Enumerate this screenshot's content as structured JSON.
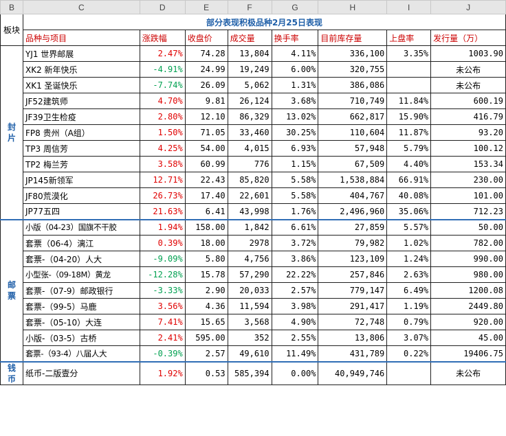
{
  "columns": [
    "B",
    "C",
    "D",
    "E",
    "F",
    "G",
    "H",
    "I",
    "J"
  ],
  "title": "部分表现积极品种2月25日表现",
  "block_label": "板块",
  "headers": [
    "品种与项目",
    "涨跌幅",
    "收盘价",
    "成交量",
    "换手率",
    "目前库存量",
    "上盘率",
    "发行量（万）"
  ],
  "groups": [
    {
      "label": "封片",
      "rows": [
        {
          "name": "YJ1 世界邮展",
          "change": "2.47%",
          "dir": "up",
          "close": "74.28",
          "volume": "13,804",
          "turnover": "4.11%",
          "stock": "336,100",
          "rate": "3.35%",
          "issue": "1003.90"
        },
        {
          "name": "XK2 新年快乐",
          "change": "-4.91%",
          "dir": "down",
          "close": "24.99",
          "volume": "19,249",
          "turnover": "6.00%",
          "stock": "320,755",
          "rate": "",
          "issue": "未公布"
        },
        {
          "name": "XK1 圣诞快乐",
          "change": "-7.74%",
          "dir": "down",
          "close": "26.09",
          "volume": "5,062",
          "turnover": "1.31%",
          "stock": "386,086",
          "rate": "",
          "issue": "未公布"
        },
        {
          "name": "JF52建筑师",
          "change": "4.70%",
          "dir": "up",
          "close": "9.81",
          "volume": "26,124",
          "turnover": "3.68%",
          "stock": "710,749",
          "rate": "11.84%",
          "issue": "600.19"
        },
        {
          "name": "JF39卫生检疫",
          "change": "2.80%",
          "dir": "up",
          "close": "12.10",
          "volume": "86,329",
          "turnover": "13.02%",
          "stock": "662,817",
          "rate": "15.90%",
          "issue": "416.79"
        },
        {
          "name": "FP8 贵州（A组）",
          "change": "1.50%",
          "dir": "up",
          "close": "71.05",
          "volume": "33,460",
          "turnover": "30.25%",
          "stock": "110,604",
          "rate": "11.87%",
          "issue": "93.20"
        },
        {
          "name": "TP3 周信芳",
          "change": "4.25%",
          "dir": "up",
          "close": "54.00",
          "volume": "4,015",
          "turnover": "6.93%",
          "stock": "57,948",
          "rate": "5.79%",
          "issue": "100.12"
        },
        {
          "name": "TP2 梅兰芳",
          "change": "3.58%",
          "dir": "up",
          "close": "60.99",
          "volume": "776",
          "turnover": "1.15%",
          "stock": "67,509",
          "rate": "4.40%",
          "issue": "153.34"
        },
        {
          "name": "JP145新领军",
          "change": "12.71%",
          "dir": "up",
          "close": "22.43",
          "volume": "85,820",
          "turnover": "5.58%",
          "stock": "1,538,884",
          "rate": "66.91%",
          "issue": "230.00"
        },
        {
          "name": "JF80荒漠化",
          "change": "26.73%",
          "dir": "up",
          "close": "17.40",
          "volume": "22,601",
          "turnover": "5.58%",
          "stock": "404,767",
          "rate": "40.08%",
          "issue": "101.00"
        },
        {
          "name": "JP77五四",
          "change": "21.63%",
          "dir": "up",
          "close": "6.41",
          "volume": "43,998",
          "turnover": "1.76%",
          "stock": "2,496,960",
          "rate": "35.06%",
          "issue": "712.23"
        }
      ]
    },
    {
      "label": "邮票",
      "rows": [
        {
          "name": "小版（04-23）国旗不干胶",
          "change": "1.94%",
          "dir": "up",
          "close": "158.00",
          "volume": "1,842",
          "turnover": "6.61%",
          "stock": "27,859",
          "rate": "5.57%",
          "issue": "50.00"
        },
        {
          "name": "套票（06-4）漓江",
          "change": "0.39%",
          "dir": "up",
          "close": "18.00",
          "volume": "2978",
          "turnover": "3.72%",
          "stock": "79,982",
          "rate": "1.02%",
          "issue": "782.00"
        },
        {
          "name": "套票-（04-20）人大",
          "change": "-9.09%",
          "dir": "down",
          "close": "5.80",
          "volume": "4,756",
          "turnover": "3.86%",
          "stock": "123,109",
          "rate": "1.24%",
          "issue": "990.00"
        },
        {
          "name": "小型张-（09-18M）黄龙",
          "change": "-12.28%",
          "dir": "down",
          "close": "15.78",
          "volume": "57,290",
          "turnover": "22.22%",
          "stock": "257,846",
          "rate": "2.63%",
          "issue": "980.00"
        },
        {
          "name": "套票-（07-9）邮政银行",
          "change": "-3.33%",
          "dir": "down",
          "close": "2.90",
          "volume": "20,033",
          "turnover": "2.57%",
          "stock": "779,147",
          "rate": "6.49%",
          "issue": "1200.08"
        },
        {
          "name": "套票-（99-5）马鹿",
          "change": "3.56%",
          "dir": "up",
          "close": "4.36",
          "volume": "11,594",
          "turnover": "3.98%",
          "stock": "291,417",
          "rate": "1.19%",
          "issue": "2449.80"
        },
        {
          "name": "套票-（05-10）大连",
          "change": "7.41%",
          "dir": "up",
          "close": "15.65",
          "volume": "3,568",
          "turnover": "4.90%",
          "stock": "72,748",
          "rate": "0.79%",
          "issue": "920.00"
        },
        {
          "name": "小版-（03-5）古桥",
          "change": "2.41%",
          "dir": "up",
          "close": "595.00",
          "volume": "352",
          "turnover": "2.55%",
          "stock": "13,806",
          "rate": "3.07%",
          "issue": "45.00"
        },
        {
          "name": "套票-（93-4）八届人大",
          "change": "-0.39%",
          "dir": "down",
          "close": "2.57",
          "volume": "49,610",
          "turnover": "11.49%",
          "stock": "431,789",
          "rate": "0.22%",
          "issue": "19406.75"
        }
      ]
    },
    {
      "label": "钱币",
      "rows": [
        {
          "name": "纸币-二版壹分",
          "change": "1.92%",
          "dir": "up",
          "close": "0.53",
          "volume": "585,394",
          "turnover": "0.00%",
          "stock": "40,949,746",
          "rate": "",
          "issue": "未公布"
        }
      ]
    }
  ],
  "colors": {
    "up": "#e00000",
    "down": "#00a050",
    "title": "#1f5fa8",
    "header": "#cc0000"
  }
}
